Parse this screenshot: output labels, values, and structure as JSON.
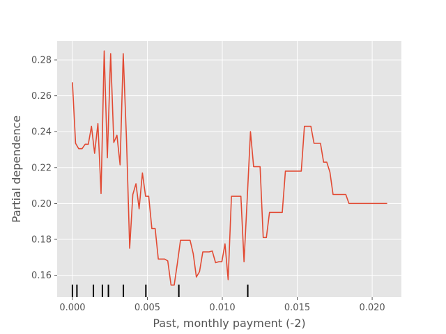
{
  "chart_data": {
    "type": "line",
    "title": "",
    "xlabel": "Past, monthly payment (-2)",
    "ylabel": "Partial dependence",
    "xlim": [
      -0.00102,
      0.02195
    ],
    "ylim": [
      0.1478,
      0.2905
    ],
    "xticks": [
      0.0,
      0.005,
      0.01,
      0.015,
      0.02
    ],
    "xtick_labels": [
      "0.000",
      "0.005",
      "0.010",
      "0.015",
      "0.020"
    ],
    "yticks": [
      0.16,
      0.18,
      0.2,
      0.22,
      0.24,
      0.26,
      0.28
    ],
    "ytick_labels": [
      "0.16",
      "0.18",
      "0.20",
      "0.22",
      "0.24",
      "0.26",
      "0.28"
    ],
    "grid": true,
    "style": "ggplot",
    "colors": {
      "line": "#e24a33",
      "axes_bg": "#e5e5e5",
      "grid": "#ffffff",
      "text": "#555555",
      "rug": "#000000"
    },
    "rug_x": [
      0.0,
      0.0003,
      0.0014,
      0.002,
      0.0024,
      0.0034,
      0.0049,
      0.0071,
      0.0117
    ],
    "x": [
      0.0,
      0.00021,
      0.00042,
      0.00064,
      0.00085,
      0.00106,
      0.00127,
      0.00148,
      0.0017,
      0.00191,
      0.00212,
      0.00233,
      0.00255,
      0.00276,
      0.00297,
      0.00318,
      0.00339,
      0.00361,
      0.00382,
      0.00403,
      0.00424,
      0.00445,
      0.00467,
      0.00488,
      0.00509,
      0.0053,
      0.00552,
      0.00573,
      0.00594,
      0.00615,
      0.00636,
      0.00658,
      0.00679,
      0.007,
      0.00721,
      0.00742,
      0.00764,
      0.00785,
      0.00806,
      0.00827,
      0.00848,
      0.0087,
      0.00891,
      0.00912,
      0.00933,
      0.00955,
      0.00976,
      0.00997,
      0.01018,
      0.01039,
      0.01061,
      0.01082,
      0.01103,
      0.01124,
      0.01145,
      0.01167,
      0.01188,
      0.01209,
      0.0123,
      0.01252,
      0.01273,
      0.01294,
      0.01315,
      0.01336,
      0.01358,
      0.01379,
      0.014,
      0.01421,
      0.01442,
      0.01464,
      0.01485,
      0.01506,
      0.01527,
      0.01548,
      0.0157,
      0.01591,
      0.01612,
      0.01633,
      0.01655,
      0.01676,
      0.01697,
      0.01718,
      0.01739,
      0.01761,
      0.01782,
      0.01803,
      0.01824,
      0.01845,
      0.01867,
      0.01888,
      0.01909,
      0.0193,
      0.01952,
      0.01973,
      0.01994,
      0.02015,
      0.02036,
      0.02058,
      0.02079,
      0.021
    ],
    "y": [
      0.2675,
      0.2335,
      0.2305,
      0.2305,
      0.233,
      0.233,
      0.243,
      0.228,
      0.2445,
      0.2055,
      0.285,
      0.2255,
      0.2835,
      0.234,
      0.238,
      0.2215,
      0.2835,
      0.235,
      0.175,
      0.205,
      0.211,
      0.197,
      0.217,
      0.204,
      0.204,
      0.186,
      0.186,
      0.169,
      0.169,
      0.169,
      0.168,
      0.1545,
      0.1545,
      0.1665,
      0.1795,
      0.1795,
      0.1795,
      0.1795,
      0.172,
      0.159,
      0.162,
      0.173,
      0.173,
      0.173,
      0.1735,
      0.167,
      0.1675,
      0.1675,
      0.1775,
      0.1575,
      0.204,
      0.204,
      0.204,
      0.204,
      0.1675,
      0.204,
      0.24,
      0.2205,
      0.2205,
      0.2205,
      0.181,
      0.181,
      0.195,
      0.195,
      0.195,
      0.195,
      0.195,
      0.218,
      0.218,
      0.218,
      0.218,
      0.218,
      0.218,
      0.243,
      0.243,
      0.243,
      0.2335,
      0.2335,
      0.2335,
      0.223,
      0.223,
      0.2175,
      0.205,
      0.205,
      0.205,
      0.205,
      0.205,
      0.2,
      0.2,
      0.2,
      0.2,
      0.2,
      0.2,
      0.2,
      0.2,
      0.2,
      0.2,
      0.2,
      0.2,
      0.2
    ]
  }
}
